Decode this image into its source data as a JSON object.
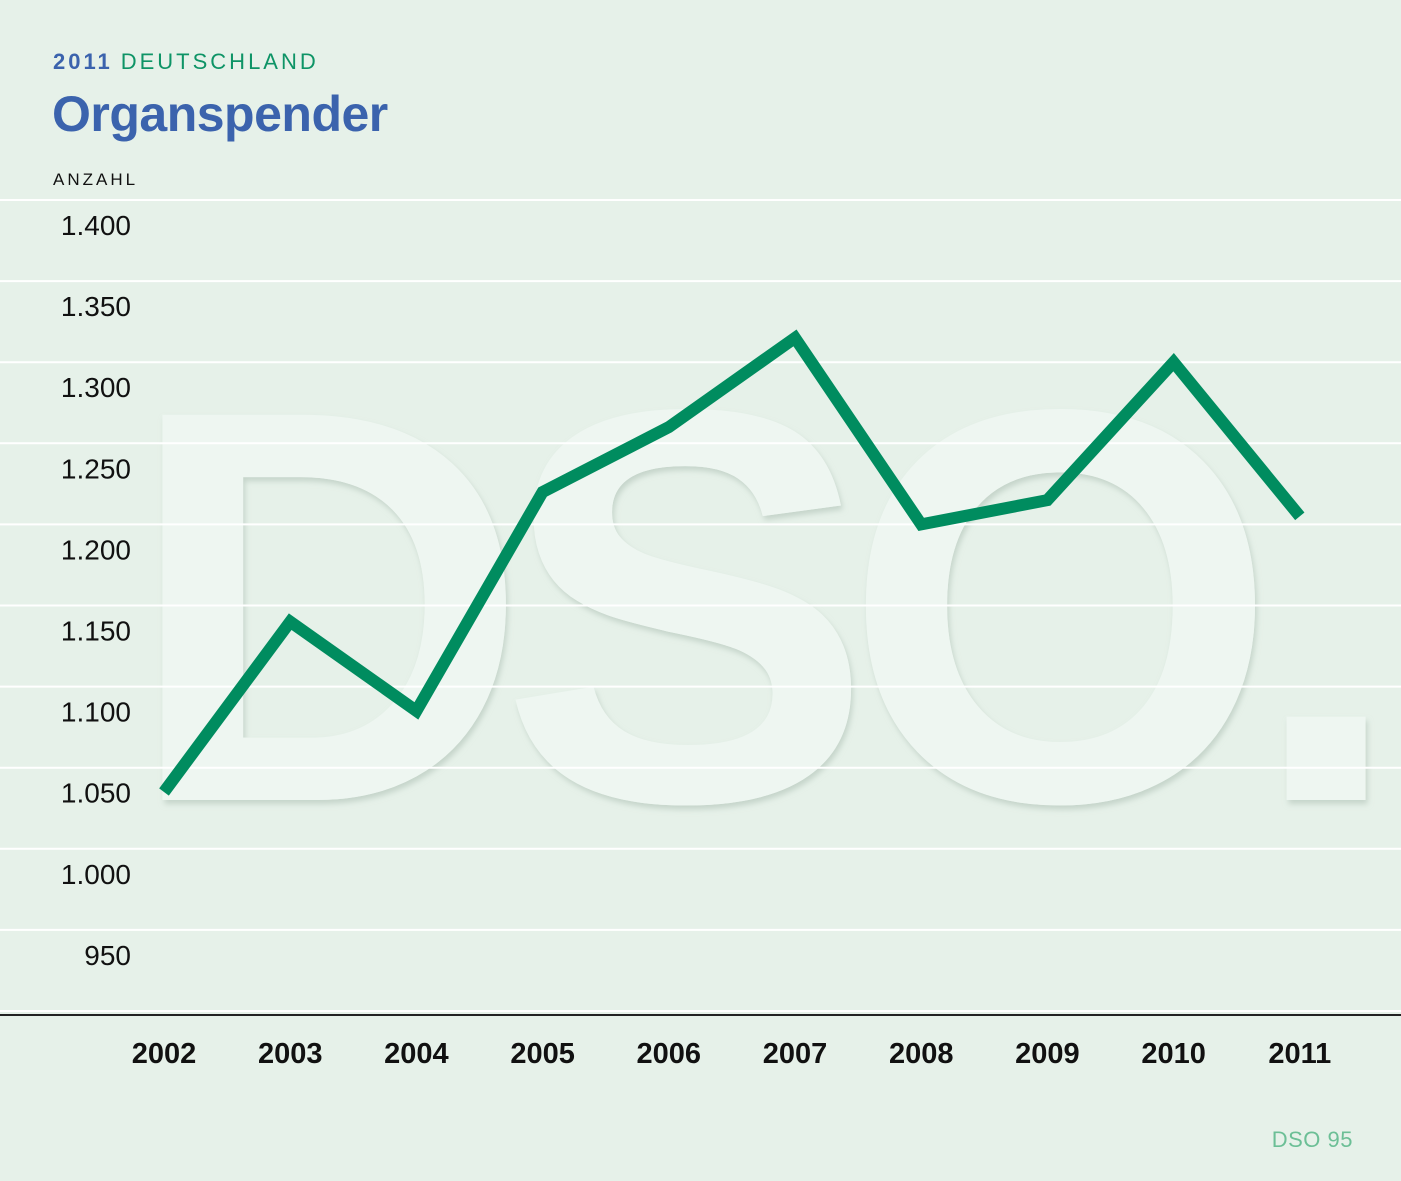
{
  "header": {
    "year": "2011",
    "region": "DEUTSCHLAND",
    "title": "Organspender"
  },
  "source": "DSO 95",
  "watermark": "DSO.",
  "colors": {
    "background": "#e6f1e9",
    "line": "#008c5f",
    "title": "#3b63ad",
    "region": "#0e9466",
    "gridline": "#ffffff",
    "axis": "#222222"
  },
  "chart_data": {
    "type": "line",
    "title": "Organspender",
    "ylabel": "ANZAHL",
    "xlabel": "",
    "categories": [
      "2002",
      "2003",
      "2004",
      "2005",
      "2006",
      "2007",
      "2008",
      "2009",
      "2010",
      "2011"
    ],
    "series": [
      {
        "values": [
          1035,
          1140,
          1085,
          1220,
          1260,
          1315,
          1200,
          1215,
          1300,
          1205
        ]
      }
    ],
    "ylim": [
      900,
      1400
    ],
    "yticks": [
      1400,
      1350,
      1300,
      1250,
      1200,
      1150,
      1100,
      1050,
      1000,
      950
    ],
    "ytick_labels": [
      "1.400",
      "1.350",
      "1.300",
      "1.250",
      "1.200",
      "1.150",
      "1.100",
      "1.050",
      "1.000",
      "950"
    ],
    "grid": true,
    "legend": "none"
  }
}
